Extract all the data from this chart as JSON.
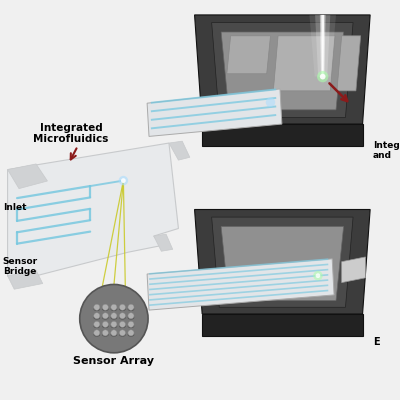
{
  "bg_color": "#f0f0f0",
  "colors": {
    "card_face": "#e8eaec",
    "card_edge": "#c8cacc",
    "card_dark": "#d0d2d4",
    "dark_box_top": "#3c3c3c",
    "dark_box_side": "#2a2a2a",
    "dark_box_front": "#222222",
    "inner_gray": "#686868",
    "platform_light": "#909090",
    "channel_blue": "#78c8e0",
    "arrow_red": "#8b1a1a",
    "arrow_yellow": "#c8c820",
    "glow_green": "#aaffaa",
    "glow_blue": "#aaddff",
    "sensor_bg": "#787878",
    "sensor_pillar": "#aaaaaa",
    "white": "#ffffff"
  },
  "labels": {
    "integrated_microfluidics": "Integrated\nMicrofluidics",
    "inlet": "Inlet",
    "sensor_bridge": "Sensor\nBridge",
    "sensor_array": "Sensor Array",
    "integ_and": "Integ\nand",
    "E": "E"
  }
}
